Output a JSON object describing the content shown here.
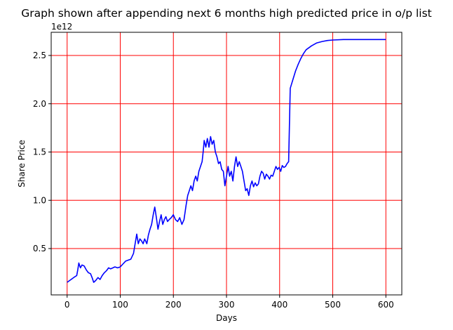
{
  "chart_data": {
    "type": "line",
    "title": "Graph shown after appending next 6 months high predicted price in o/p list",
    "xlabel": "Days",
    "ylabel": "Share Price",
    "y_offset_label": "1e12",
    "xlim": [
      -30,
      630
    ],
    "ylim": [
      0.02,
      2.74
    ],
    "y_scale_note": "y values in units of 1e12",
    "x_ticks": [
      0,
      100,
      200,
      300,
      400,
      500,
      600
    ],
    "x_tick_labels": [
      "0",
      "100",
      "200",
      "300",
      "400",
      "500",
      "600"
    ],
    "y_ticks": [
      0.5,
      1.0,
      1.5,
      2.0,
      2.5
    ],
    "y_tick_labels": [
      "0.5",
      "1.0",
      "1.5",
      "2.0",
      "2.5"
    ],
    "grid": true,
    "grid_color": "#ff0000",
    "series": [
      {
        "color": "#0000ff",
        "points": [
          [
            0,
            0.15
          ],
          [
            5,
            0.17
          ],
          [
            10,
            0.19
          ],
          [
            15,
            0.21
          ],
          [
            18,
            0.22
          ],
          [
            20,
            0.28
          ],
          [
            22,
            0.35
          ],
          [
            25,
            0.3
          ],
          [
            28,
            0.33
          ],
          [
            32,
            0.32
          ],
          [
            36,
            0.28
          ],
          [
            40,
            0.25
          ],
          [
            44,
            0.24
          ],
          [
            47,
            0.2
          ],
          [
            50,
            0.15
          ],
          [
            54,
            0.17
          ],
          [
            58,
            0.2
          ],
          [
            62,
            0.18
          ],
          [
            66,
            0.22
          ],
          [
            70,
            0.25
          ],
          [
            74,
            0.27
          ],
          [
            78,
            0.3
          ],
          [
            82,
            0.29
          ],
          [
            86,
            0.3
          ],
          [
            90,
            0.31
          ],
          [
            95,
            0.3
          ],
          [
            100,
            0.31
          ],
          [
            105,
            0.34
          ],
          [
            110,
            0.37
          ],
          [
            115,
            0.38
          ],
          [
            120,
            0.39
          ],
          [
            125,
            0.45
          ],
          [
            128,
            0.55
          ],
          [
            131,
            0.65
          ],
          [
            134,
            0.55
          ],
          [
            137,
            0.6
          ],
          [
            140,
            0.58
          ],
          [
            143,
            0.55
          ],
          [
            146,
            0.6
          ],
          [
            150,
            0.55
          ],
          [
            153,
            0.64
          ],
          [
            156,
            0.7
          ],
          [
            159,
            0.75
          ],
          [
            162,
            0.85
          ],
          [
            165,
            0.93
          ],
          [
            168,
            0.82
          ],
          [
            171,
            0.7
          ],
          [
            174,
            0.78
          ],
          [
            177,
            0.85
          ],
          [
            180,
            0.75
          ],
          [
            183,
            0.8
          ],
          [
            186,
            0.83
          ],
          [
            189,
            0.78
          ],
          [
            192,
            0.8
          ],
          [
            196,
            0.82
          ],
          [
            200,
            0.85
          ],
          [
            204,
            0.8
          ],
          [
            208,
            0.78
          ],
          [
            212,
            0.82
          ],
          [
            216,
            0.75
          ],
          [
            220,
            0.8
          ],
          [
            224,
            0.95
          ],
          [
            227,
            1.05
          ],
          [
            230,
            1.1
          ],
          [
            233,
            1.15
          ],
          [
            236,
            1.1
          ],
          [
            239,
            1.2
          ],
          [
            242,
            1.25
          ],
          [
            245,
            1.2
          ],
          [
            248,
            1.3
          ],
          [
            251,
            1.35
          ],
          [
            254,
            1.4
          ],
          [
            256,
            1.5
          ],
          [
            258,
            1.62
          ],
          [
            261,
            1.55
          ],
          [
            264,
            1.64
          ],
          [
            267,
            1.55
          ],
          [
            270,
            1.66
          ],
          [
            273,
            1.58
          ],
          [
            276,
            1.62
          ],
          [
            279,
            1.5
          ],
          [
            282,
            1.45
          ],
          [
            285,
            1.38
          ],
          [
            288,
            1.4
          ],
          [
            291,
            1.32
          ],
          [
            294,
            1.3
          ],
          [
            297,
            1.15
          ],
          [
            300,
            1.25
          ],
          [
            303,
            1.35
          ],
          [
            306,
            1.25
          ],
          [
            309,
            1.3
          ],
          [
            312,
            1.2
          ],
          [
            315,
            1.35
          ],
          [
            318,
            1.45
          ],
          [
            321,
            1.35
          ],
          [
            324,
            1.4
          ],
          [
            327,
            1.35
          ],
          [
            330,
            1.3
          ],
          [
            333,
            1.2
          ],
          [
            336,
            1.1
          ],
          [
            339,
            1.12
          ],
          [
            342,
            1.05
          ],
          [
            345,
            1.15
          ],
          [
            348,
            1.2
          ],
          [
            351,
            1.14
          ],
          [
            354,
            1.18
          ],
          [
            357,
            1.15
          ],
          [
            360,
            1.17
          ],
          [
            363,
            1.25
          ],
          [
            366,
            1.3
          ],
          [
            369,
            1.28
          ],
          [
            372,
            1.22
          ],
          [
            375,
            1.27
          ],
          [
            378,
            1.25
          ],
          [
            381,
            1.22
          ],
          [
            384,
            1.26
          ],
          [
            387,
            1.25
          ],
          [
            390,
            1.3
          ],
          [
            393,
            1.35
          ],
          [
            396,
            1.32
          ],
          [
            399,
            1.34
          ],
          [
            402,
            1.3
          ],
          [
            405,
            1.36
          ],
          [
            408,
            1.34
          ],
          [
            411,
            1.35
          ],
          [
            414,
            1.38
          ],
          [
            417,
            1.4
          ],
          [
            420,
            2.16
          ],
          [
            425,
            2.25
          ],
          [
            430,
            2.34
          ],
          [
            435,
            2.41
          ],
          [
            440,
            2.47
          ],
          [
            445,
            2.52
          ],
          [
            450,
            2.56
          ],
          [
            460,
            2.6
          ],
          [
            470,
            2.63
          ],
          [
            480,
            2.645
          ],
          [
            490,
            2.655
          ],
          [
            500,
            2.66
          ],
          [
            520,
            2.665
          ],
          [
            550,
            2.665
          ],
          [
            600,
            2.665
          ]
        ]
      }
    ]
  }
}
